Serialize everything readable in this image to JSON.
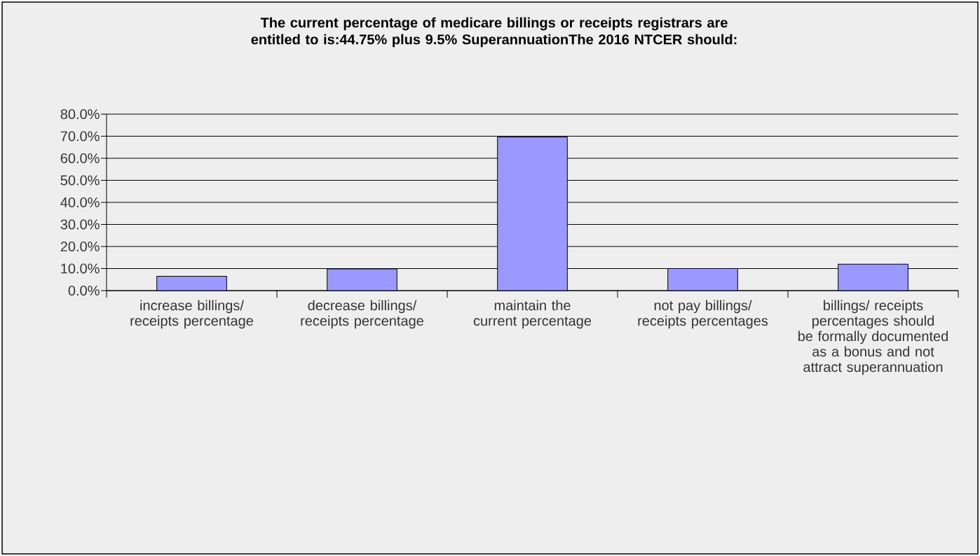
{
  "chart_data": {
    "type": "bar",
    "title": "The current percentage of medicare billings or receipts registrars are entitled to is:44.75% plus 9.5% SuperannuationThe 2016 NTCER should:",
    "categories": [
      "increase billings/ receipts percentage",
      "decrease billings/ receipts percentage",
      "maintain the current percentage",
      "not pay billings/ receipts percentages",
      "billings/ receipts percentages should be formally documented as a bonus and not attract superannuation"
    ],
    "values": [
      6.5,
      9.8,
      69.6,
      10.0,
      12.0
    ],
    "color": "#9999ff",
    "ylim": [
      0,
      80
    ],
    "yticks": [
      {
        "value": 0,
        "label": "0.0%"
      },
      {
        "value": 10,
        "label": "10.0%"
      },
      {
        "value": 20,
        "label": "20.0%"
      },
      {
        "value": 30,
        "label": "30.0%"
      },
      {
        "value": 40,
        "label": "40.0%"
      },
      {
        "value": 50,
        "label": "50.0%"
      },
      {
        "value": 60,
        "label": "60.0%"
      },
      {
        "value": 70,
        "label": "70.0%"
      },
      {
        "value": 80,
        "label": "80.0%"
      }
    ],
    "grid": "y"
  }
}
